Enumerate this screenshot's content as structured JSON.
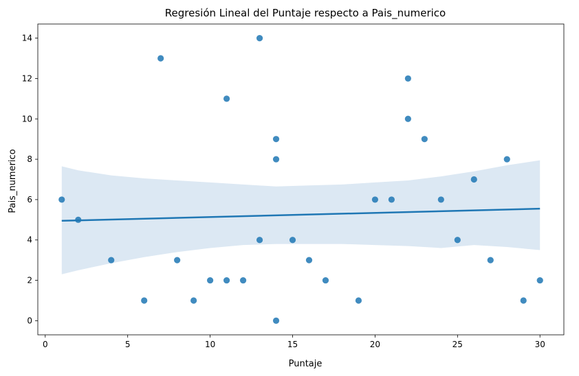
{
  "chart_data": {
    "type": "scatter",
    "title": "Regresión Lineal del Puntaje respecto a Pais_numerico",
    "xlabel": "Puntaje",
    "ylabel": "Pais_numerico",
    "xlim": [
      -0.45,
      31.45
    ],
    "ylim": [
      -0.7,
      14.7
    ],
    "xticks": [
      0,
      5,
      10,
      15,
      20,
      25,
      30
    ],
    "yticks": [
      0,
      2,
      4,
      6,
      8,
      10,
      12,
      14
    ],
    "grid": false,
    "legend": "none",
    "points": [
      {
        "x": 1,
        "y": 6
      },
      {
        "x": 2,
        "y": 5
      },
      {
        "x": 4,
        "y": 3
      },
      {
        "x": 6,
        "y": 1
      },
      {
        "x": 7,
        "y": 13
      },
      {
        "x": 8,
        "y": 3
      },
      {
        "x": 9,
        "y": 1
      },
      {
        "x": 10,
        "y": 2
      },
      {
        "x": 11,
        "y": 11
      },
      {
        "x": 11,
        "y": 2
      },
      {
        "x": 12,
        "y": 2
      },
      {
        "x": 13,
        "y": 14
      },
      {
        "x": 13,
        "y": 4
      },
      {
        "x": 14,
        "y": 9
      },
      {
        "x": 14,
        "y": 8
      },
      {
        "x": 14,
        "y": 0
      },
      {
        "x": 15,
        "y": 4
      },
      {
        "x": 16,
        "y": 3
      },
      {
        "x": 17,
        "y": 2
      },
      {
        "x": 19,
        "y": 1
      },
      {
        "x": 20,
        "y": 6
      },
      {
        "x": 21,
        "y": 6
      },
      {
        "x": 22,
        "y": 12
      },
      {
        "x": 22,
        "y": 10
      },
      {
        "x": 23,
        "y": 9
      },
      {
        "x": 24,
        "y": 6
      },
      {
        "x": 25,
        "y": 4
      },
      {
        "x": 26,
        "y": 7
      },
      {
        "x": 27,
        "y": 3
      },
      {
        "x": 28,
        "y": 8
      },
      {
        "x": 29,
        "y": 1
      },
      {
        "x": 30,
        "y": 2
      }
    ],
    "regression_line": {
      "x": [
        1,
        30
      ],
      "y": [
        4.95,
        5.55
      ]
    },
    "confidence_band": {
      "x": [
        1,
        2,
        4,
        6,
        8,
        10,
        12,
        14,
        16,
        18,
        20,
        22,
        24,
        26,
        28,
        30
      ],
      "upper": [
        7.65,
        7.45,
        7.2,
        7.05,
        6.95,
        6.85,
        6.75,
        6.65,
        6.7,
        6.75,
        6.85,
        6.95,
        7.15,
        7.4,
        7.7,
        7.95
      ],
      "lower": [
        2.3,
        2.5,
        2.85,
        3.15,
        3.4,
        3.6,
        3.75,
        3.8,
        3.8,
        3.8,
        3.75,
        3.7,
        3.6,
        3.75,
        3.65,
        3.5
      ]
    },
    "colors": {
      "point": "#1f77b4",
      "line": "#1f77b4",
      "band": "#dce8f3",
      "axis": "#000000"
    }
  }
}
